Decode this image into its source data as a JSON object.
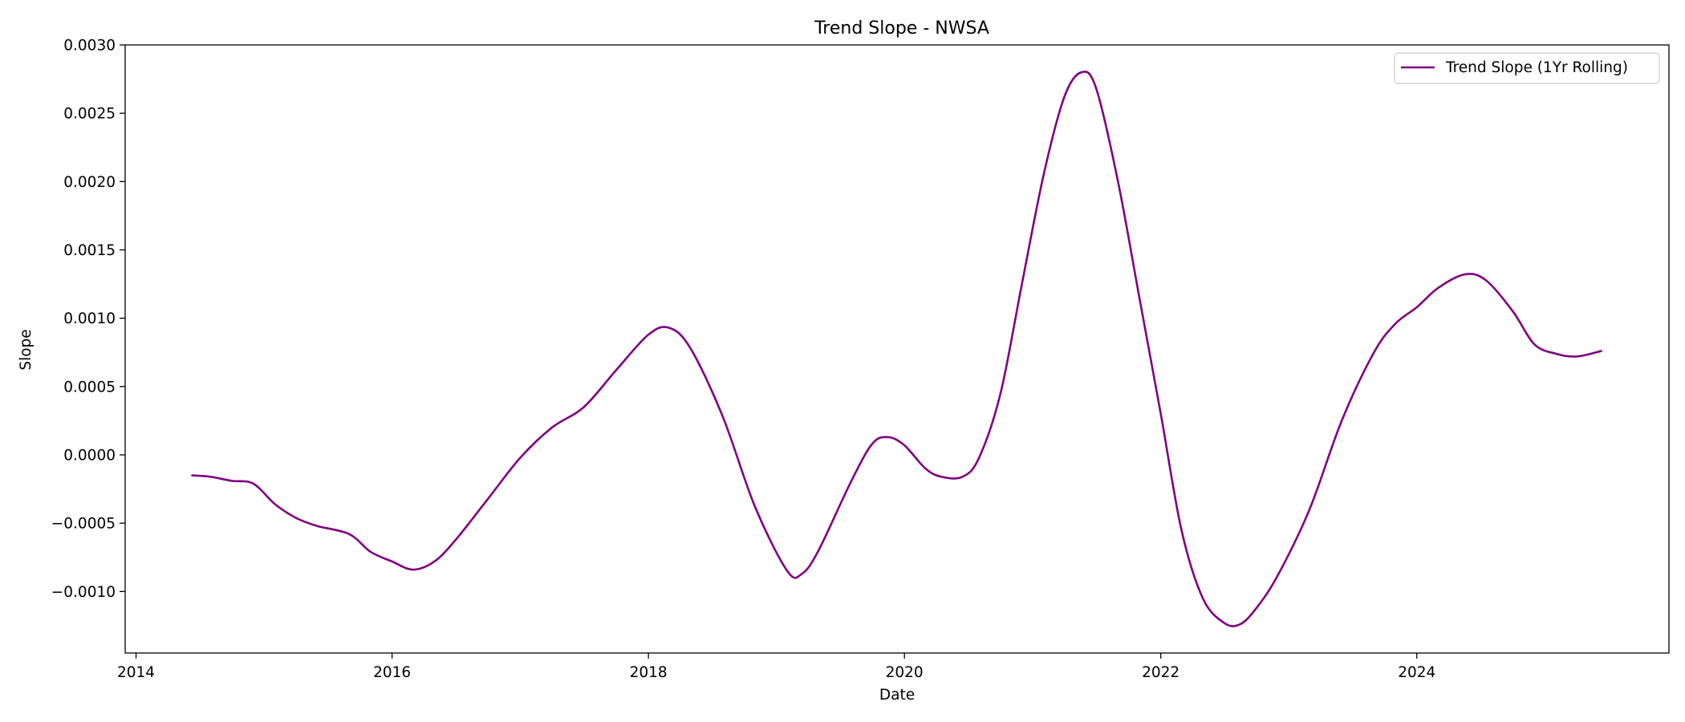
{
  "chart_data": {
    "type": "line",
    "title": "Trend Slope - NWSA",
    "xlabel": "Date",
    "ylabel": "Slope",
    "xlim": [
      "2013-12-01",
      "2025-12-20"
    ],
    "ylim": [
      -0.00145,
      0.003
    ],
    "x_ticks": [
      "2014",
      "2016",
      "2018",
      "2020",
      "2022",
      "2024"
    ],
    "x_tick_dates": [
      "2014-01-01",
      "2016-01-01",
      "2018-01-01",
      "2020-01-01",
      "2022-01-01",
      "2024-01-01"
    ],
    "y_ticks": [
      "0.0030",
      "0.0025",
      "0.0020",
      "0.0015",
      "0.0010",
      "0.0005",
      "0.0000",
      "−0.0005",
      "−0.0010"
    ],
    "y_tick_values": [
      0.003,
      0.0025,
      0.002,
      0.0015,
      0.001,
      0.0005,
      0.0,
      -0.0005,
      -0.001
    ],
    "grid": false,
    "legend_position": "top-right",
    "series": [
      {
        "name": "Trend Slope (1Yr Rolling)",
        "color": "#800080",
        "points": [
          [
            "2014-06-10",
            -0.00015
          ],
          [
            "2014-08-01",
            -0.00016
          ],
          [
            "2014-10-01",
            -0.00019
          ],
          [
            "2014-12-01",
            -0.00021
          ],
          [
            "2015-02-01",
            -0.00036
          ],
          [
            "2015-04-01",
            -0.00046
          ],
          [
            "2015-06-01",
            -0.00052
          ],
          [
            "2015-09-01",
            -0.00058
          ],
          [
            "2015-11-01",
            -0.00071
          ],
          [
            "2016-01-01",
            -0.00078
          ],
          [
            "2016-03-01",
            -0.00084
          ],
          [
            "2016-05-01",
            -0.00078
          ],
          [
            "2016-07-01",
            -0.00062
          ],
          [
            "2016-10-01",
            -0.00032
          ],
          [
            "2017-01-01",
            -2e-05
          ],
          [
            "2017-04-01",
            0.0002
          ],
          [
            "2017-07-01",
            0.00035
          ],
          [
            "2017-10-01",
            0.00062
          ],
          [
            "2018-01-01",
            0.00088
          ],
          [
            "2018-03-01",
            0.00093
          ],
          [
            "2018-05-01",
            0.00078
          ],
          [
            "2018-08-01",
            0.00028
          ],
          [
            "2018-11-01",
            -0.00038
          ],
          [
            "2019-02-01",
            -0.00085
          ],
          [
            "2019-03-15",
            -0.00087
          ],
          [
            "2019-05-01",
            -0.0007
          ],
          [
            "2019-08-01",
            -0.0002
          ],
          [
            "2019-10-01",
            8e-05
          ],
          [
            "2019-11-15",
            0.00013
          ],
          [
            "2020-01-01",
            7e-05
          ],
          [
            "2020-03-01",
            -0.0001
          ],
          [
            "2020-04-15",
            -0.00016
          ],
          [
            "2020-06-15",
            -0.00016
          ],
          [
            "2020-08-01",
            -2e-05
          ],
          [
            "2020-10-01",
            0.00045
          ],
          [
            "2020-12-01",
            0.00125
          ],
          [
            "2021-02-01",
            0.00205
          ],
          [
            "2021-04-01",
            0.00262
          ],
          [
            "2021-05-20",
            0.0028
          ],
          [
            "2021-07-01",
            0.00268
          ],
          [
            "2021-09-01",
            0.002
          ],
          [
            "2021-11-01",
            0.00115
          ],
          [
            "2022-01-01",
            0.0003
          ],
          [
            "2022-03-01",
            -0.00055
          ],
          [
            "2022-05-01",
            -0.00105
          ],
          [
            "2022-07-01",
            -0.00123
          ],
          [
            "2022-08-15",
            -0.00124
          ],
          [
            "2022-10-01",
            -0.00112
          ],
          [
            "2022-12-01",
            -0.00088
          ],
          [
            "2023-03-01",
            -0.0004
          ],
          [
            "2023-06-01",
            0.00025
          ],
          [
            "2023-09-01",
            0.00075
          ],
          [
            "2023-11-01",
            0.00096
          ],
          [
            "2024-01-01",
            0.00108
          ],
          [
            "2024-03-01",
            0.00122
          ],
          [
            "2024-05-15",
            0.00132
          ],
          [
            "2024-07-15",
            0.00128
          ],
          [
            "2024-10-01",
            0.00105
          ],
          [
            "2024-12-01",
            0.00081
          ],
          [
            "2025-02-01",
            0.00074
          ],
          [
            "2025-04-01",
            0.00072
          ],
          [
            "2025-06-10",
            0.00076
          ]
        ]
      }
    ]
  }
}
